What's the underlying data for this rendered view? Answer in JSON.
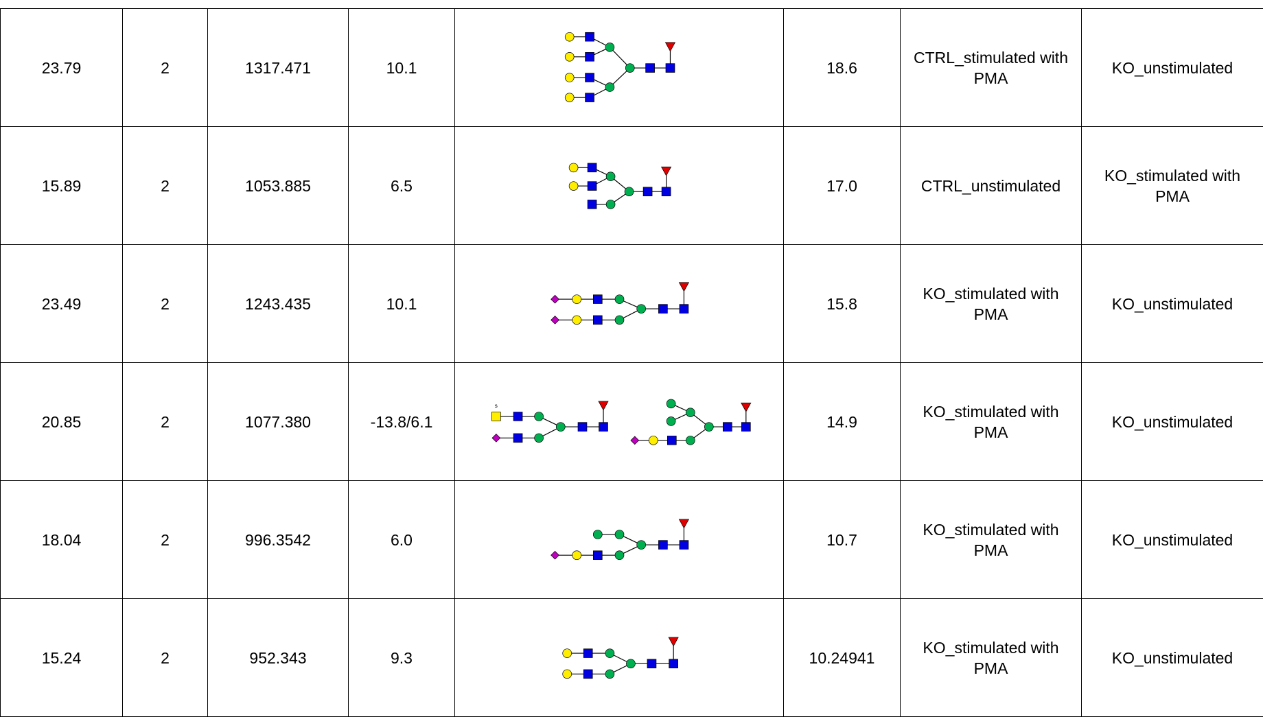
{
  "table": {
    "rows": [
      [
        "23.79",
        "2",
        "1317.471",
        "10.1",
        "18.6",
        "CTRL_stimulated with PMA",
        "KO_unstimulated"
      ],
      [
        "15.89",
        "2",
        "1053.885",
        "6.5",
        "17.0",
        "CTRL_unstimulated",
        "KO_stimulated with PMA"
      ],
      [
        "23.49",
        "2",
        "1243.435",
        "10.1",
        "15.8",
        "KO_stimulated with PMA",
        "KO_unstimulated"
      ],
      [
        "20.85",
        "2",
        "1077.380",
        "-13.8/6.1",
        "14.9",
        "KO_stimulated with PMA",
        "KO_unstimulated"
      ],
      [
        "18.04",
        "2",
        "996.3542",
        "6.0",
        "10.7",
        "KO_stimulated with PMA",
        "KO_unstimulated"
      ],
      [
        "15.24",
        "2",
        "952.343",
        "9.3",
        "10.24941",
        "KO_stimulated with PMA",
        "KO_unstimulated"
      ]
    ],
    "sulfate_label": "s"
  }
}
